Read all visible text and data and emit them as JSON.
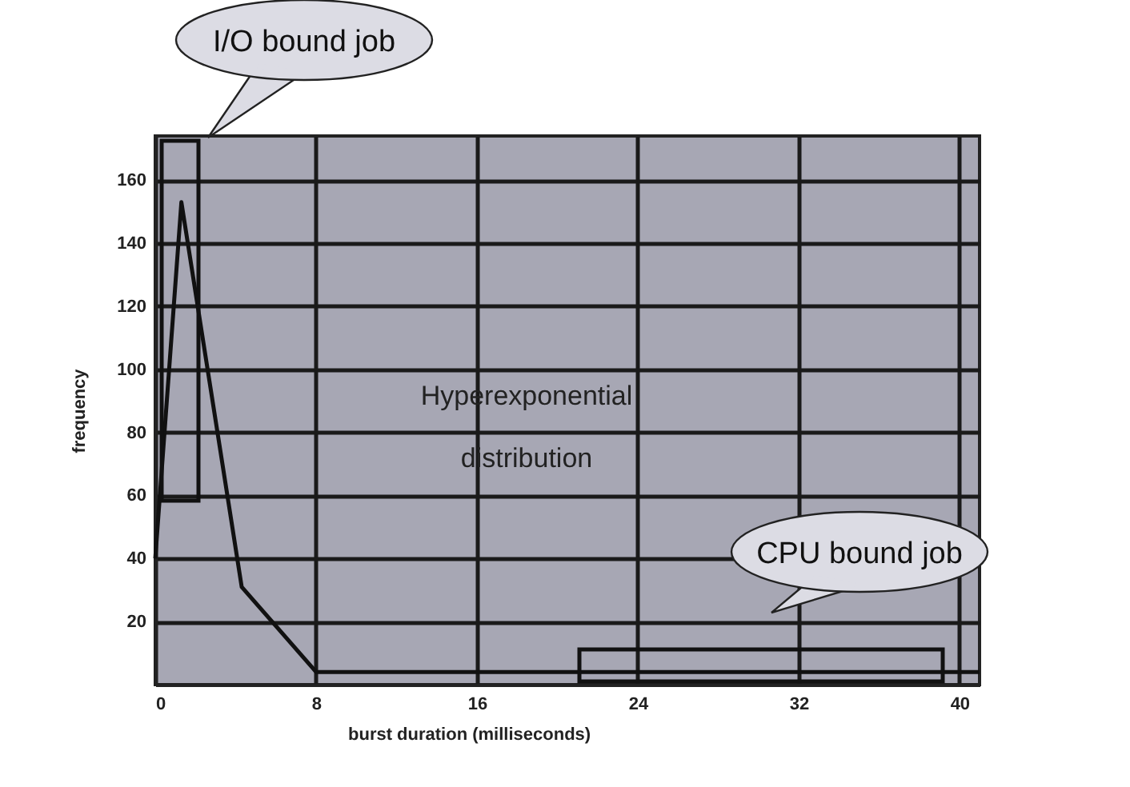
{
  "chart_data": {
    "type": "line",
    "xlabel": "burst duration (milliseconds)",
    "ylabel": "frequency",
    "x": [
      0,
      1.3,
      4.3,
      8,
      41
    ],
    "series": [
      {
        "color": "#111111",
        "values": [
          40,
          153,
          31,
          4,
          4
        ]
      }
    ],
    "xlim": [
      0,
      41
    ],
    "ylim": [
      0,
      174
    ],
    "xticks": [
      0,
      8,
      16,
      24,
      32,
      40
    ],
    "yticks": [
      20,
      40,
      60,
      80,
      100,
      120,
      140,
      160
    ],
    "grid": true,
    "line_style": "solid",
    "annotations": [
      "I/O bound job",
      "CPU bound job",
      "Hyperexponential distribution"
    ]
  }
}
